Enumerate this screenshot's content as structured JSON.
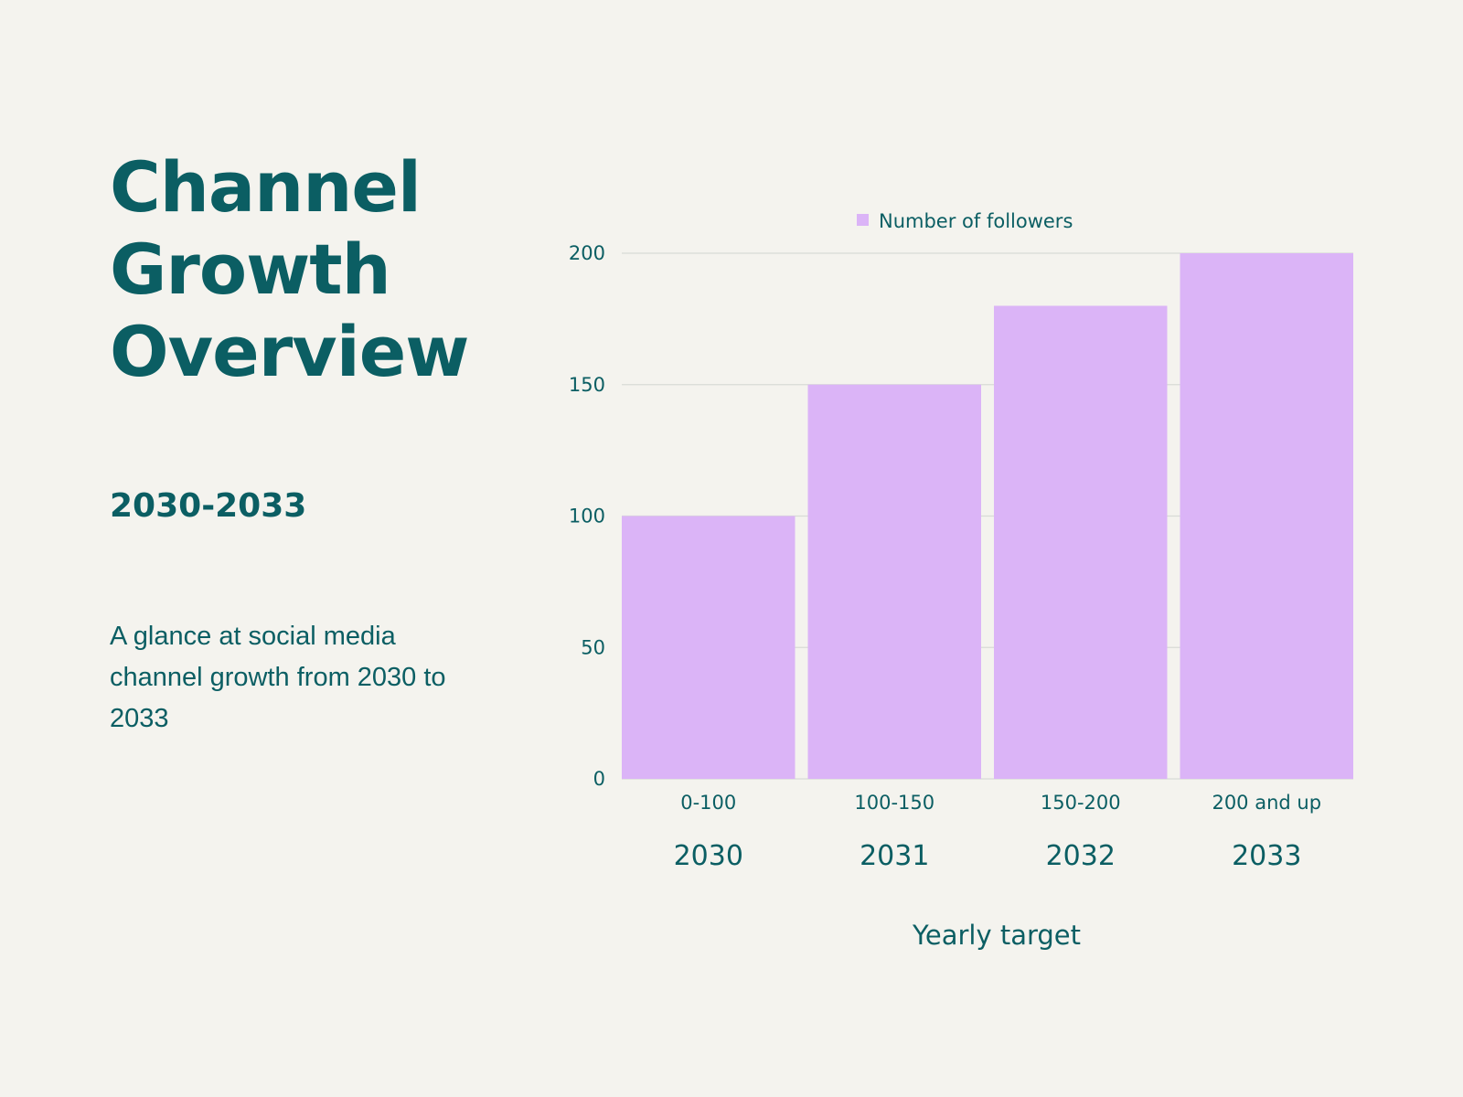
{
  "slide": {
    "title": "Channel\nGrowth\nOverview",
    "subtitle": "2030-2033",
    "description": "A glance at social media channel growth from 2030 to 2033"
  },
  "colors": {
    "background": "#f4f3ee",
    "text": "#0b5e63",
    "bar": "#dbb4f7",
    "grid": "#d8dbd6"
  },
  "chart_data": {
    "type": "bar",
    "categories": [
      "0-100",
      "100-150",
      "150-200",
      "200 and up"
    ],
    "secondary_labels": [
      "2030",
      "2031",
      "2032",
      "2033"
    ],
    "series": [
      {
        "name": "Number of followers",
        "values": [
          100,
          150,
          180,
          200
        ]
      }
    ],
    "title": "",
    "xlabel": "Yearly target",
    "ylabel": "",
    "ylim": [
      0,
      200
    ],
    "yticks": [
      0,
      50,
      100,
      150,
      200
    ],
    "grid": true,
    "legend": "top-center"
  }
}
